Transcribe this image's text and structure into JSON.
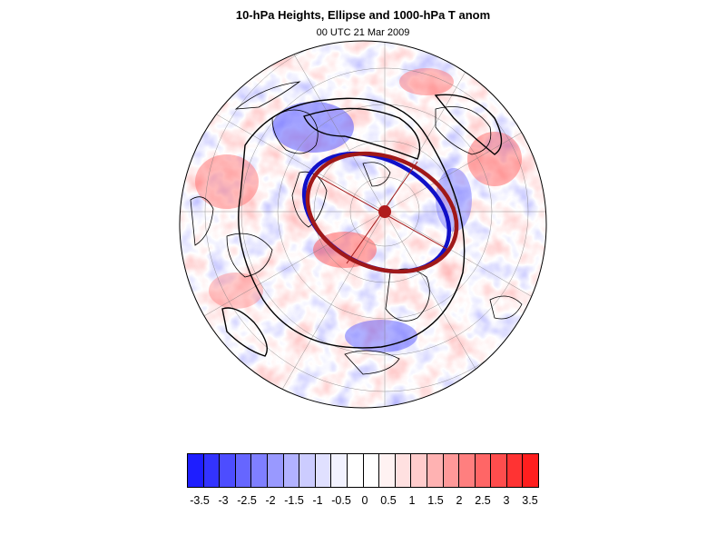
{
  "header": {
    "title": "10-hPa Heights, Ellipse and 1000-hPa T anom",
    "subtitle": "00 UTC 21 Mar 2009"
  },
  "map": {
    "projection": "north polar orthographic",
    "fill_variable": "1000-hPa temperature anomaly",
    "contour_variable": "10-hPa heights",
    "ellipse_colors": {
      "observed": "#1010c8",
      "fitted": "#a01818"
    },
    "centroid_color": "#b01c1c"
  },
  "colorbar": {
    "labels": [
      "-3.5",
      "-3",
      "-2.5",
      "-2",
      "-1.5",
      "-1",
      "-0.5",
      "0",
      "0.5",
      "1",
      "1.5",
      "2",
      "2.5",
      "3",
      "3.5"
    ],
    "colors": [
      "#1e1eff",
      "#3333ff",
      "#4d4dff",
      "#6666ff",
      "#7f7fff",
      "#9999ff",
      "#b2b2ff",
      "#ccccff",
      "#e0e0ff",
      "#f2f2ff",
      "#ffffff",
      "#ffffff",
      "#fff2f2",
      "#ffe0e0",
      "#ffcccc",
      "#ffb2b2",
      "#ff9999",
      "#ff7f7f",
      "#ff6666",
      "#ff4d4d",
      "#ff3333",
      "#ff1e1e"
    ]
  }
}
